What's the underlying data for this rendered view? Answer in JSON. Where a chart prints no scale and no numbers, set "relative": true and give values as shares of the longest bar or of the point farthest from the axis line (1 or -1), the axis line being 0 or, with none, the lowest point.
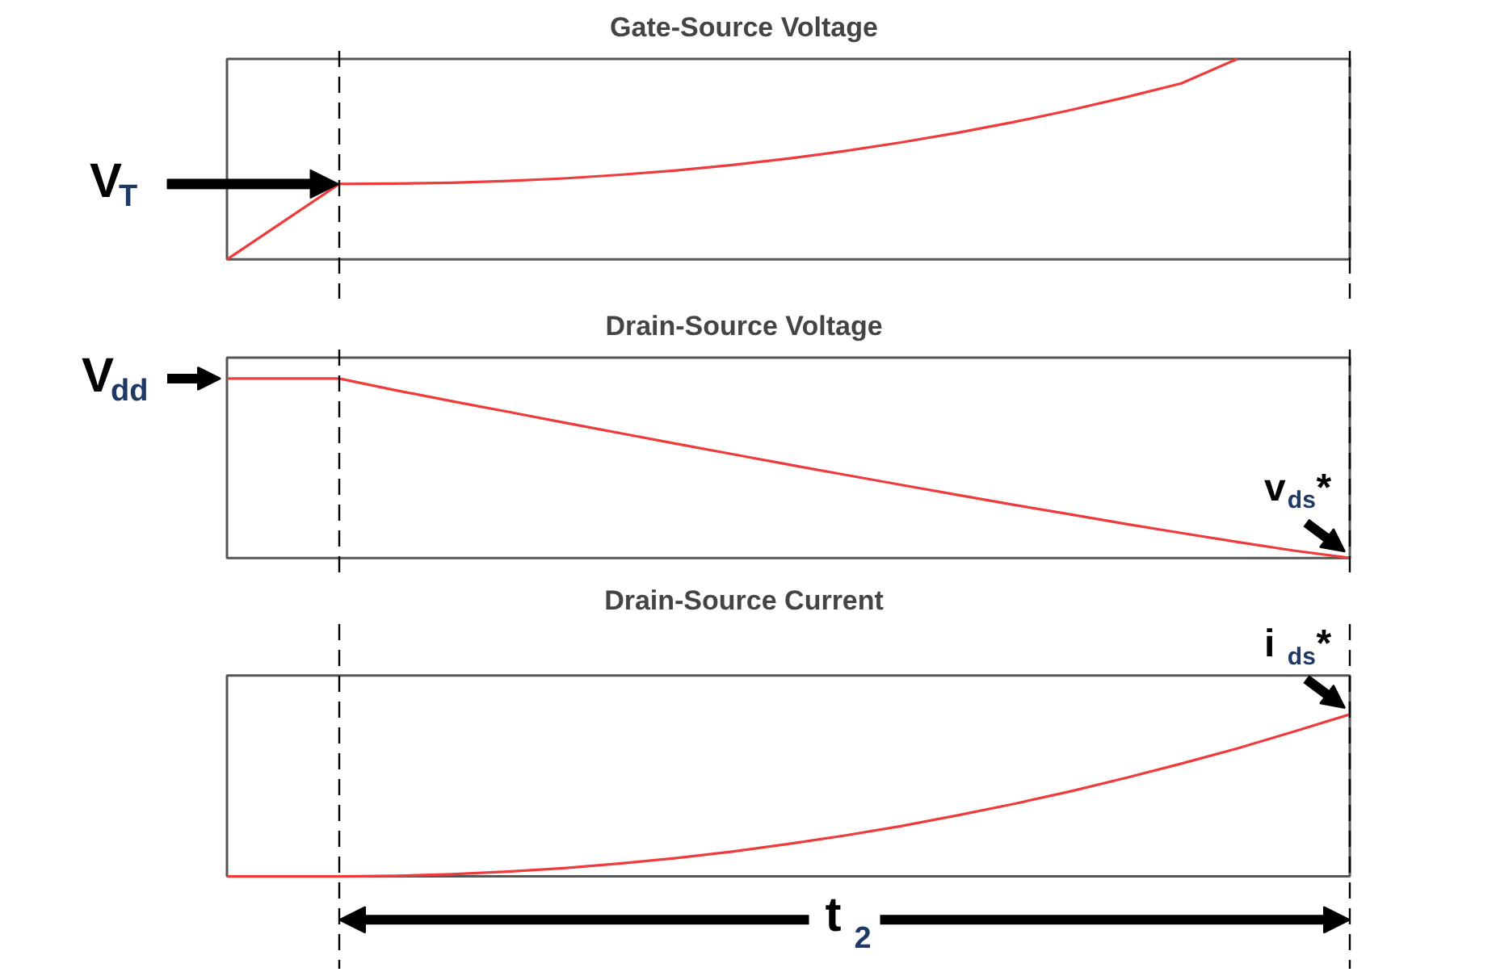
{
  "chart_data": [
    {
      "type": "line",
      "relative": true,
      "title": "Gate-Source Voltage",
      "color": "#ee3b3b",
      "categories": [
        null,
        null,
        null,
        null,
        null,
        null,
        null,
        null,
        null,
        null,
        null,
        null,
        null,
        null,
        null,
        null,
        null,
        null,
        null,
        null,
        null
      ],
      "values": [
        0,
        0.188,
        0.376,
        0.378,
        0.382,
        0.391,
        0.404,
        0.422,
        0.444,
        0.471,
        0.503,
        0.54,
        0.583,
        0.631,
        0.684,
        0.743,
        0.808,
        0.878,
        1.0,
        null,
        null
      ],
      "annotations": [
        "V$_{T}$"
      ]
    },
    {
      "type": "line",
      "relative": true,
      "title": "Drain-Source Voltage",
      "color": "#ee3b3b",
      "categories": [
        null,
        null,
        null,
        null,
        null,
        null,
        null,
        null,
        null,
        null,
        null,
        null,
        null,
        null,
        null,
        null,
        null,
        null,
        null,
        null,
        null
      ],
      "values": [
        1,
        1,
        1,
        0.935,
        0.874,
        0.815,
        0.755,
        0.696,
        0.637,
        0.579,
        0.521,
        0.464,
        0.408,
        0.352,
        0.297,
        0.244,
        0.19,
        0.139,
        0.089,
        0.041,
        0
      ],
      "annotations": [
        "V$_{dd}$",
        "v$_{ds}$*"
      ]
    },
    {
      "type": "line",
      "relative": true,
      "title": "Drain-Source Current",
      "color": "#ee3b3b",
      "categories": [
        null,
        null,
        null,
        null,
        null,
        null,
        null,
        null,
        null,
        null,
        null,
        null,
        null,
        null,
        null,
        null,
        null,
        null,
        null,
        null,
        null
      ],
      "values": [
        0,
        0,
        0,
        0.0035,
        0.013,
        0.029,
        0.051,
        0.079,
        0.113,
        0.153,
        0.2,
        0.252,
        0.31,
        0.376,
        0.446,
        0.523,
        0.607,
        0.696,
        0.79,
        0.893,
        1
      ],
      "annotations": [
        "i$_{ds}$*",
        "t$_{2}$"
      ]
    }
  ]
}
